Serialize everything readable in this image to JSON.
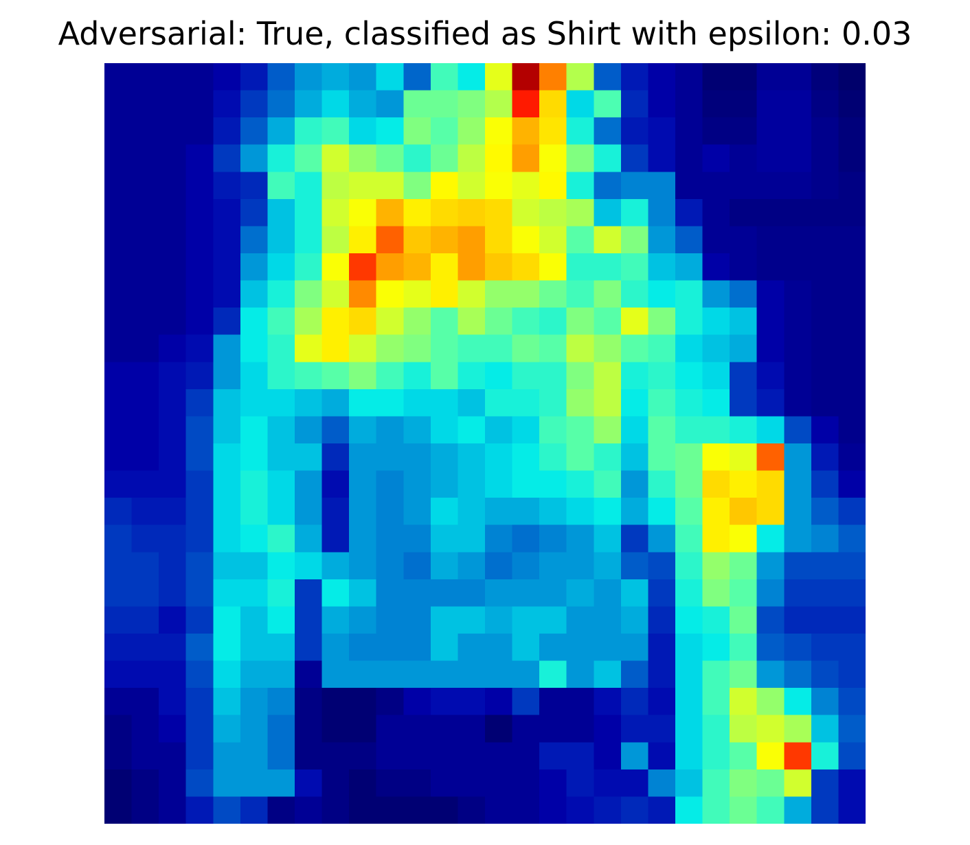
{
  "title": "Adversarial: True, classified as Shirt with epsilon: 0.03",
  "chart_data": {
    "type": "heatmap",
    "title": "Adversarial: True, classified as Shirt with epsilon: 0.03",
    "rows": 28,
    "cols": 28,
    "axes_visible": false,
    "colormap": "jet",
    "value_range": [
      0,
      1
    ],
    "grid": false,
    "values": [
      [
        0.1,
        0.1,
        0.1,
        0.1,
        0.12,
        0.16,
        0.24,
        0.3,
        0.32,
        0.3,
        0.36,
        0.25,
        0.44,
        0.38,
        0.6,
        0.95,
        0.75,
        0.55,
        0.24,
        0.16,
        0.12,
        0.1,
        0.06,
        0.06,
        0.1,
        0.1,
        0.07,
        0.05
      ],
      [
        0.1,
        0.1,
        0.1,
        0.1,
        0.14,
        0.2,
        0.26,
        0.32,
        0.36,
        0.32,
        0.3,
        0.48,
        0.48,
        0.5,
        0.55,
        0.85,
        0.66,
        0.36,
        0.45,
        0.18,
        0.12,
        0.1,
        0.07,
        0.07,
        0.11,
        0.11,
        0.08,
        0.06
      ],
      [
        0.1,
        0.1,
        0.1,
        0.1,
        0.16,
        0.24,
        0.32,
        0.42,
        0.44,
        0.36,
        0.38,
        0.5,
        0.46,
        0.52,
        0.62,
        0.7,
        0.65,
        0.4,
        0.26,
        0.16,
        0.14,
        0.1,
        0.08,
        0.08,
        0.11,
        0.11,
        0.09,
        0.07
      ],
      [
        0.1,
        0.1,
        0.1,
        0.12,
        0.2,
        0.3,
        0.4,
        0.46,
        0.58,
        0.52,
        0.48,
        0.42,
        0.48,
        0.56,
        0.63,
        0.72,
        0.62,
        0.5,
        0.4,
        0.2,
        0.14,
        0.1,
        0.12,
        0.1,
        0.11,
        0.11,
        0.09,
        0.07
      ],
      [
        0.1,
        0.1,
        0.1,
        0.12,
        0.16,
        0.18,
        0.44,
        0.4,
        0.56,
        0.58,
        0.58,
        0.5,
        0.63,
        0.58,
        0.62,
        0.6,
        0.63,
        0.4,
        0.26,
        0.28,
        0.28,
        0.1,
        0.1,
        0.1,
        0.1,
        0.1,
        0.09,
        0.08
      ],
      [
        0.1,
        0.1,
        0.1,
        0.12,
        0.14,
        0.2,
        0.34,
        0.4,
        0.58,
        0.62,
        0.7,
        0.64,
        0.66,
        0.67,
        0.66,
        0.58,
        0.56,
        0.54,
        0.34,
        0.4,
        0.28,
        0.16,
        0.1,
        0.08,
        0.08,
        0.08,
        0.08,
        0.08
      ],
      [
        0.1,
        0.1,
        0.1,
        0.12,
        0.14,
        0.26,
        0.34,
        0.4,
        0.56,
        0.64,
        0.78,
        0.68,
        0.7,
        0.72,
        0.66,
        0.62,
        0.58,
        0.46,
        0.58,
        0.5,
        0.3,
        0.24,
        0.1,
        0.1,
        0.09,
        0.09,
        0.09,
        0.09
      ],
      [
        0.1,
        0.1,
        0.1,
        0.12,
        0.14,
        0.3,
        0.36,
        0.42,
        0.62,
        0.82,
        0.72,
        0.7,
        0.64,
        0.72,
        0.68,
        0.66,
        0.62,
        0.42,
        0.42,
        0.44,
        0.34,
        0.32,
        0.12,
        0.1,
        0.09,
        0.09,
        0.09,
        0.09
      ],
      [
        0.1,
        0.1,
        0.1,
        0.12,
        0.14,
        0.34,
        0.4,
        0.5,
        0.58,
        0.74,
        0.62,
        0.6,
        0.64,
        0.58,
        0.52,
        0.52,
        0.48,
        0.44,
        0.5,
        0.42,
        0.38,
        0.4,
        0.3,
        0.26,
        0.12,
        0.1,
        0.09,
        0.09
      ],
      [
        0.1,
        0.1,
        0.1,
        0.12,
        0.18,
        0.38,
        0.44,
        0.54,
        0.64,
        0.66,
        0.58,
        0.52,
        0.46,
        0.54,
        0.48,
        0.44,
        0.42,
        0.5,
        0.46,
        0.6,
        0.5,
        0.4,
        0.36,
        0.34,
        0.12,
        0.1,
        0.09,
        0.09
      ],
      [
        0.1,
        0.1,
        0.12,
        0.14,
        0.3,
        0.38,
        0.42,
        0.6,
        0.64,
        0.58,
        0.52,
        0.5,
        0.46,
        0.44,
        0.44,
        0.48,
        0.46,
        0.56,
        0.52,
        0.46,
        0.44,
        0.36,
        0.34,
        0.32,
        0.12,
        0.1,
        0.09,
        0.09
      ],
      [
        0.12,
        0.12,
        0.14,
        0.16,
        0.3,
        0.36,
        0.42,
        0.44,
        0.46,
        0.5,
        0.44,
        0.4,
        0.46,
        0.4,
        0.38,
        0.42,
        0.42,
        0.5,
        0.56,
        0.4,
        0.42,
        0.38,
        0.36,
        0.2,
        0.14,
        0.1,
        0.09,
        0.09
      ],
      [
        0.12,
        0.12,
        0.14,
        0.2,
        0.34,
        0.36,
        0.36,
        0.34,
        0.32,
        0.38,
        0.38,
        0.36,
        0.36,
        0.34,
        0.4,
        0.4,
        0.42,
        0.52,
        0.56,
        0.38,
        0.44,
        0.4,
        0.38,
        0.2,
        0.16,
        0.1,
        0.09,
        0.09
      ],
      [
        0.12,
        0.12,
        0.14,
        0.22,
        0.34,
        0.38,
        0.34,
        0.3,
        0.24,
        0.32,
        0.3,
        0.32,
        0.36,
        0.38,
        0.34,
        0.36,
        0.44,
        0.46,
        0.52,
        0.36,
        0.46,
        0.42,
        0.42,
        0.4,
        0.36,
        0.22,
        0.12,
        0.09
      ],
      [
        0.12,
        0.12,
        0.14,
        0.22,
        0.36,
        0.38,
        0.34,
        0.34,
        0.18,
        0.3,
        0.3,
        0.3,
        0.32,
        0.34,
        0.36,
        0.38,
        0.42,
        0.46,
        0.42,
        0.34,
        0.46,
        0.48,
        0.62,
        0.6,
        0.78,
        0.3,
        0.16,
        0.1
      ],
      [
        0.14,
        0.14,
        0.14,
        0.2,
        0.36,
        0.4,
        0.36,
        0.3,
        0.14,
        0.3,
        0.28,
        0.3,
        0.32,
        0.34,
        0.36,
        0.38,
        0.38,
        0.4,
        0.44,
        0.3,
        0.42,
        0.48,
        0.66,
        0.64,
        0.66,
        0.3,
        0.2,
        0.12
      ],
      [
        0.18,
        0.16,
        0.16,
        0.2,
        0.36,
        0.4,
        0.36,
        0.3,
        0.16,
        0.3,
        0.28,
        0.3,
        0.36,
        0.34,
        0.32,
        0.32,
        0.34,
        0.36,
        0.38,
        0.32,
        0.38,
        0.46,
        0.64,
        0.68,
        0.66,
        0.3,
        0.24,
        0.2
      ],
      [
        0.2,
        0.18,
        0.18,
        0.2,
        0.36,
        0.38,
        0.42,
        0.32,
        0.16,
        0.3,
        0.28,
        0.28,
        0.34,
        0.34,
        0.28,
        0.26,
        0.28,
        0.3,
        0.34,
        0.2,
        0.3,
        0.44,
        0.64,
        0.62,
        0.38,
        0.3,
        0.28,
        0.24
      ],
      [
        0.2,
        0.2,
        0.18,
        0.22,
        0.34,
        0.34,
        0.38,
        0.36,
        0.32,
        0.3,
        0.28,
        0.26,
        0.32,
        0.3,
        0.26,
        0.28,
        0.3,
        0.3,
        0.32,
        0.24,
        0.22,
        0.42,
        0.52,
        0.48,
        0.3,
        0.22,
        0.22,
        0.22
      ],
      [
        0.2,
        0.2,
        0.18,
        0.22,
        0.36,
        0.36,
        0.4,
        0.2,
        0.38,
        0.34,
        0.28,
        0.28,
        0.28,
        0.28,
        0.3,
        0.3,
        0.3,
        0.32,
        0.3,
        0.34,
        0.2,
        0.4,
        0.5,
        0.46,
        0.28,
        0.2,
        0.2,
        0.2
      ],
      [
        0.18,
        0.18,
        0.14,
        0.2,
        0.38,
        0.34,
        0.38,
        0.2,
        0.32,
        0.3,
        0.28,
        0.28,
        0.34,
        0.34,
        0.32,
        0.34,
        0.34,
        0.3,
        0.3,
        0.32,
        0.18,
        0.38,
        0.4,
        0.48,
        0.22,
        0.18,
        0.18,
        0.18
      ],
      [
        0.16,
        0.16,
        0.16,
        0.24,
        0.38,
        0.34,
        0.34,
        0.2,
        0.3,
        0.28,
        0.28,
        0.28,
        0.34,
        0.3,
        0.3,
        0.34,
        0.3,
        0.3,
        0.3,
        0.3,
        0.16,
        0.36,
        0.38,
        0.44,
        0.24,
        0.22,
        0.2,
        0.2
      ],
      [
        0.14,
        0.14,
        0.14,
        0.22,
        0.36,
        0.32,
        0.32,
        0.1,
        0.3,
        0.3,
        0.3,
        0.3,
        0.3,
        0.3,
        0.3,
        0.3,
        0.4,
        0.3,
        0.34,
        0.24,
        0.16,
        0.36,
        0.44,
        0.48,
        0.3,
        0.26,
        0.22,
        0.2
      ],
      [
        0.1,
        0.1,
        0.14,
        0.2,
        0.34,
        0.3,
        0.28,
        0.08,
        0.06,
        0.06,
        0.08,
        0.12,
        0.14,
        0.14,
        0.12,
        0.2,
        0.1,
        0.1,
        0.14,
        0.18,
        0.14,
        0.36,
        0.44,
        0.58,
        0.52,
        0.38,
        0.28,
        0.22
      ],
      [
        0.08,
        0.1,
        0.12,
        0.2,
        0.32,
        0.3,
        0.26,
        0.08,
        0.06,
        0.06,
        0.1,
        0.1,
        0.1,
        0.1,
        0.06,
        0.1,
        0.1,
        0.1,
        0.12,
        0.16,
        0.16,
        0.36,
        0.42,
        0.56,
        0.58,
        0.54,
        0.34,
        0.24
      ],
      [
        0.08,
        0.1,
        0.1,
        0.2,
        0.3,
        0.3,
        0.26,
        0.08,
        0.08,
        0.08,
        0.1,
        0.1,
        0.1,
        0.1,
        0.1,
        0.1,
        0.16,
        0.16,
        0.12,
        0.3,
        0.14,
        0.36,
        0.42,
        0.46,
        0.62,
        0.82,
        0.4,
        0.22
      ],
      [
        0.06,
        0.08,
        0.1,
        0.22,
        0.3,
        0.3,
        0.3,
        0.14,
        0.08,
        0.06,
        0.08,
        0.08,
        0.1,
        0.1,
        0.1,
        0.1,
        0.12,
        0.16,
        0.14,
        0.14,
        0.28,
        0.34,
        0.44,
        0.5,
        0.48,
        0.58,
        0.2,
        0.14
      ],
      [
        0.06,
        0.08,
        0.1,
        0.16,
        0.22,
        0.18,
        0.08,
        0.1,
        0.08,
        0.06,
        0.06,
        0.06,
        0.06,
        0.08,
        0.1,
        0.1,
        0.12,
        0.14,
        0.16,
        0.18,
        0.16,
        0.38,
        0.44,
        0.48,
        0.44,
        0.32,
        0.2,
        0.14
      ]
    ]
  }
}
